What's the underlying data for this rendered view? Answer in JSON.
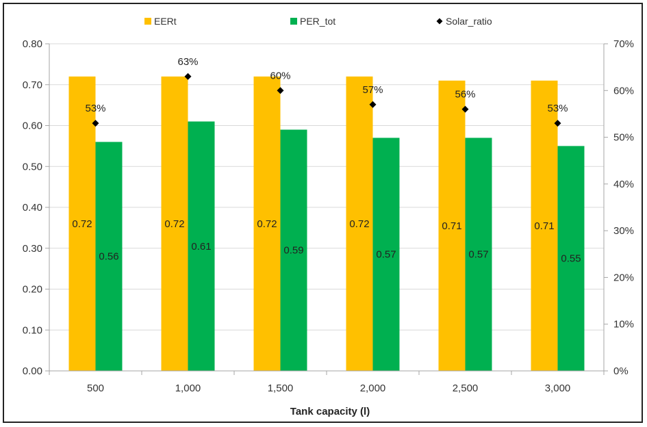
{
  "chart_data": {
    "type": "bar",
    "xlabel": "Tank capacity (l)",
    "categories": [
      "500",
      "1,000",
      "1,500",
      "2,000",
      "2,500",
      "3,000"
    ],
    "series": [
      {
        "name": "EERt",
        "kind": "bar",
        "axis": "left",
        "color": "#FFC000",
        "values": [
          0.72,
          0.72,
          0.72,
          0.72,
          0.71,
          0.71
        ],
        "labels": [
          "0.72",
          "0.72",
          "0.72",
          "0.72",
          "0.71",
          "0.71"
        ]
      },
      {
        "name": "PER_tot",
        "kind": "bar",
        "axis": "right-none",
        "color": "#00B050",
        "values": [
          0.56,
          0.61,
          0.59,
          0.57,
          0.57,
          0.55
        ],
        "labels": [
          "0.56",
          "0.61",
          "0.59",
          "0.57",
          "0.57",
          "0.55"
        ]
      },
      {
        "name": "Solar_ratio",
        "kind": "marker",
        "axis": "right",
        "color": "#000000",
        "values": [
          53,
          63,
          60,
          57,
          56,
          53
        ],
        "labels": [
          "53%",
          "63%",
          "60%",
          "57%",
          "56%",
          "53%"
        ]
      }
    ],
    "y_left": {
      "ylim": [
        0,
        0.8
      ],
      "ticks": [
        "0.00",
        "0.10",
        "0.20",
        "0.30",
        "0.40",
        "0.50",
        "0.60",
        "0.70",
        "0.80"
      ]
    },
    "y_right": {
      "ylim": [
        0,
        70
      ],
      "ticks": [
        "0%",
        "10%",
        "20%",
        "30%",
        "40%",
        "50%",
        "60%",
        "70%"
      ]
    },
    "grid": true,
    "legend_position": "top"
  }
}
